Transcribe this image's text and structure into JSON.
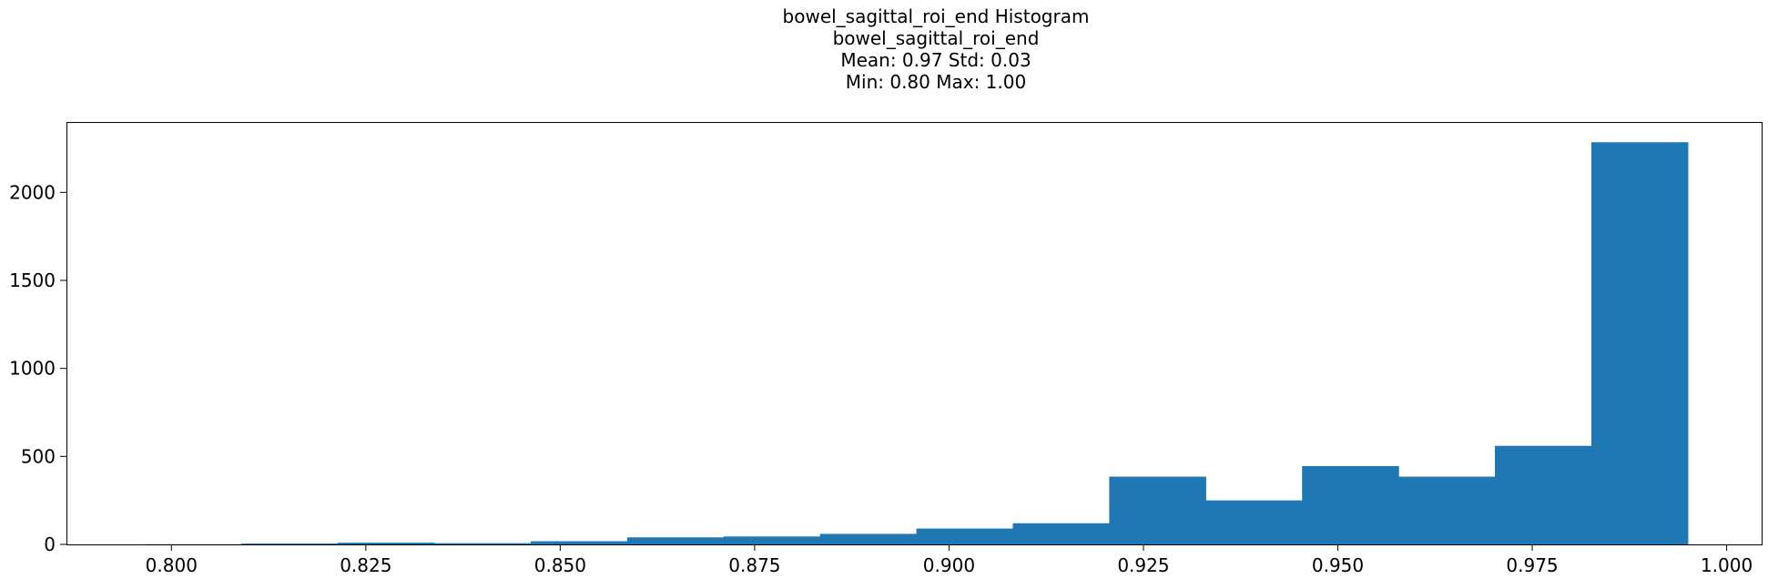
{
  "chart_data": {
    "type": "bar",
    "title_lines": [
      "bowel_sagittal_roi_end Histogram",
      "bowel_sagittal_roi_end",
      "Mean: 0.97 Std: 0.03",
      "Min: 0.80 Max: 1.00"
    ],
    "xlabel": "",
    "ylabel": "",
    "xlim": [
      0.7865,
      1.0045
    ],
    "ylim": [
      0,
      2400
    ],
    "x_ticks": [
      0.8,
      0.825,
      0.85,
      0.875,
      0.9,
      0.925,
      0.95,
      0.975,
      1.0
    ],
    "x_tick_labels": [
      "0.800",
      "0.825",
      "0.850",
      "0.875",
      "0.900",
      "0.925",
      "0.950",
      "0.975",
      "1.000"
    ],
    "y_ticks": [
      0,
      500,
      1000,
      1500,
      2000
    ],
    "y_tick_labels": [
      "0",
      "500",
      "1000",
      "1500",
      "2000"
    ],
    "bar_color": "#1f77b4",
    "bins": [
      {
        "start": 0.7966,
        "end": 0.809,
        "count": 1
      },
      {
        "start": 0.809,
        "end": 0.8214,
        "count": 5
      },
      {
        "start": 0.8214,
        "end": 0.8338,
        "count": 10
      },
      {
        "start": 0.8338,
        "end": 0.8462,
        "count": 7
      },
      {
        "start": 0.8462,
        "end": 0.8586,
        "count": 18
      },
      {
        "start": 0.8586,
        "end": 0.871,
        "count": 40
      },
      {
        "start": 0.871,
        "end": 0.8834,
        "count": 45
      },
      {
        "start": 0.8834,
        "end": 0.8958,
        "count": 60
      },
      {
        "start": 0.8958,
        "end": 0.9082,
        "count": 90
      },
      {
        "start": 0.9082,
        "end": 0.9206,
        "count": 120
      },
      {
        "start": 0.9206,
        "end": 0.933,
        "count": 385
      },
      {
        "start": 0.933,
        "end": 0.9454,
        "count": 250
      },
      {
        "start": 0.9454,
        "end": 0.9578,
        "count": 445
      },
      {
        "start": 0.9578,
        "end": 0.9702,
        "count": 385
      },
      {
        "start": 0.9702,
        "end": 0.9826,
        "count": 560
      },
      {
        "start": 0.9826,
        "end": 0.995,
        "count": 2285
      }
    ]
  }
}
